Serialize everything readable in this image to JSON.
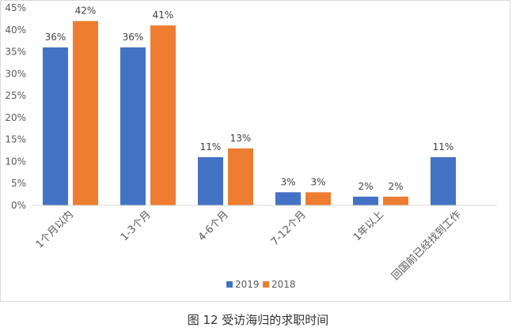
{
  "caption": "图 12 受访海归的求职时间",
  "chart_data": {
    "type": "bar",
    "categories": [
      "1个月以内",
      "1-3个月",
      "4-6个月",
      "7-12个月",
      "1年以上",
      "回国前已经找到工作"
    ],
    "series": [
      {
        "name": "2019",
        "color": "#4472c4",
        "values": [
          36,
          36,
          11,
          3,
          2,
          11
        ],
        "labels": [
          "36%",
          "36%",
          "11%",
          "3%",
          "2%",
          "11%"
        ]
      },
      {
        "name": "2018",
        "color": "#ed7d31",
        "values": [
          42,
          41,
          13,
          3,
          2,
          null
        ],
        "labels": [
          "42%",
          "41%",
          "13%",
          "3%",
          "2%",
          ""
        ]
      }
    ],
    "ylim": [
      0,
      45
    ],
    "yticks": [
      0,
      5,
      10,
      15,
      20,
      25,
      30,
      35,
      40,
      45
    ],
    "ytick_labels": [
      "0%",
      "5%",
      "10%",
      "15%",
      "20%",
      "25%",
      "30%",
      "35%",
      "40%",
      "45%"
    ],
    "grid": false,
    "legend_position": "bottom"
  }
}
